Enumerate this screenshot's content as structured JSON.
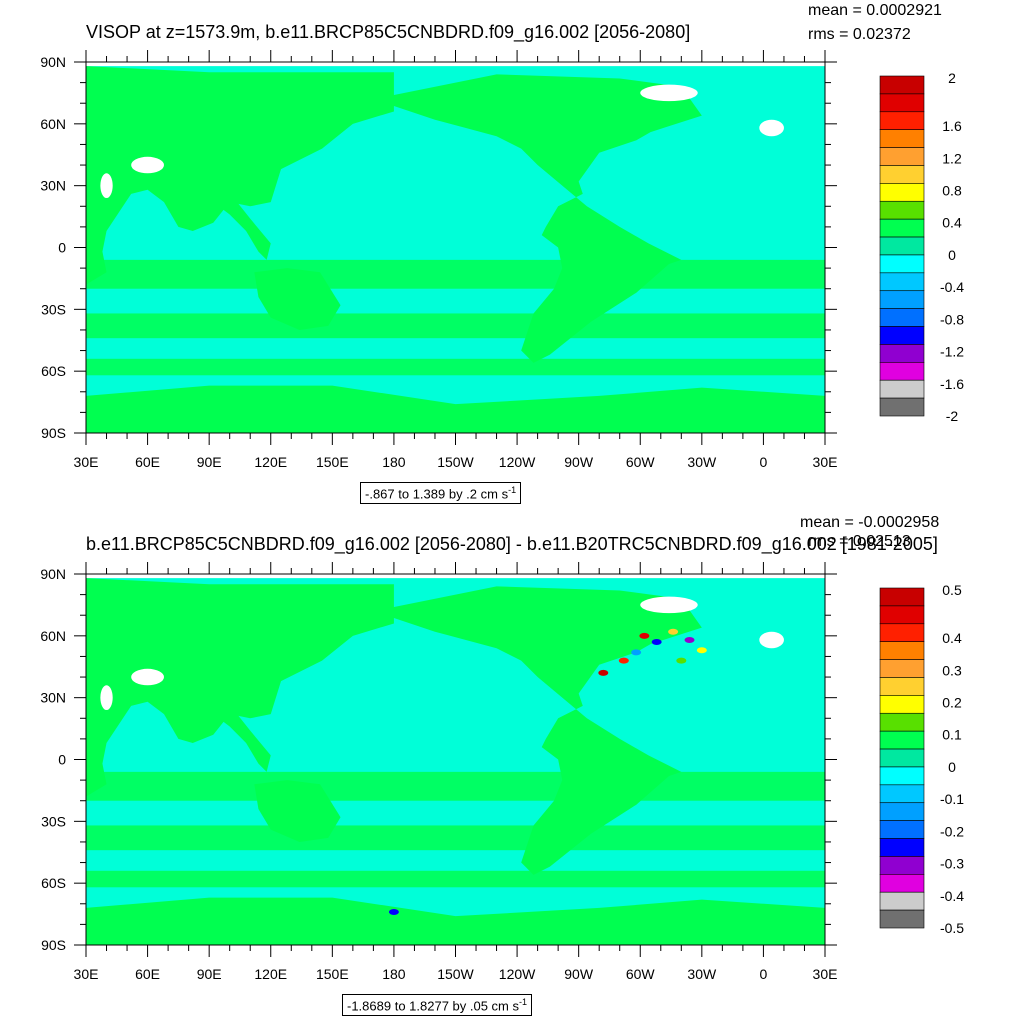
{
  "panels": [
    {
      "title": "VISOP at z=1573.9m, b.e11.BRCP85C5CNBDRD.f09_g16.002 [2056-2080]",
      "mean_label": "mean = 0.0002921",
      "rms_label": "rms = 0.02372",
      "range_text": "-.867 to 1.389 by .2 cm s",
      "range_unit_sup": "-1",
      "colorbar_labels": [
        "2",
        "1.6",
        "1.2",
        "0.8",
        "0.4",
        "0",
        "-0.4",
        "-0.8",
        "-1.2",
        "-1.6",
        "-2"
      ]
    },
    {
      "title": "b.e11.BRCP85C5CNBDRD.f09_g16.002 [2056-2080] - b.e11.B20TRC5CNBDRD.f09_g16.002 [1981-2005]",
      "mean_label": "mean = -0.0002958",
      "rms_label": "rms = 0.02513",
      "range_text": "-1.8689 to 1.8277 by .05 cm s",
      "range_unit_sup": "-1",
      "colorbar_labels": [
        "0.5",
        "0.4",
        "0.3",
        "0.2",
        "0.1",
        "0",
        "-0.1",
        "-0.2",
        "-0.3",
        "-0.4",
        "-0.5"
      ]
    }
  ],
  "axes": {
    "lat_labels": [
      "90N",
      "60N",
      "30N",
      "0",
      "30S",
      "60S",
      "90S"
    ],
    "lon_labels": [
      "30E",
      "60E",
      "90E",
      "120E",
      "150E",
      "180",
      "150W",
      "120W",
      "90W",
      "60W",
      "30W",
      "0",
      "30E"
    ]
  },
  "colors": {
    "scale": [
      "#c80000",
      "#e00000",
      "#ff2000",
      "#ff8000",
      "#ffa030",
      "#ffd030",
      "#ffff00",
      "#58e000",
      "#00ff50",
      "#00e8a0",
      "#00ffff",
      "#00c8ff",
      "#00a0ff",
      "#0070ff",
      "#0000ff",
      "#9000d0",
      "#e000e0",
      "#cccccc",
      "#707070"
    ],
    "land": "#00ff50",
    "ocean_neg": "#00ffd8"
  },
  "chart_data": [
    {
      "type": "heatmap",
      "title": "VISOP at z=1573.9m, b.e11.BRCP85C5CNBDRD.f09_g16.002 [2056-2080]",
      "variable": "VISOP",
      "units": "cm s-1",
      "min": -0.867,
      "max": 1.389,
      "interval": 0.2,
      "mean": 0.0002921,
      "rms": 0.02372,
      "colorbar_levels": [
        2,
        1.6,
        1.2,
        0.8,
        0.4,
        0,
        -0.4,
        -0.8,
        -1.2,
        -1.6,
        -2
      ],
      "lon_range": [
        "30E",
        "30E"
      ],
      "lat_range": [
        "90S",
        "90N"
      ]
    },
    {
      "type": "heatmap",
      "title": "b.e11.BRCP85C5CNBDRD.f09_g16.002 [2056-2080] - b.e11.B20TRC5CNBDRD.f09_g16.002 [1981-2005]",
      "units": "cm s-1",
      "min": -1.8689,
      "max": 1.8277,
      "interval": 0.05,
      "mean": -0.0002958,
      "rms": 0.02513,
      "colorbar_levels": [
        0.5,
        0.4,
        0.3,
        0.2,
        0.1,
        0,
        -0.1,
        -0.2,
        -0.3,
        -0.4,
        -0.5
      ],
      "lon_range": [
        "30E",
        "30E"
      ],
      "lat_range": [
        "90S",
        "90N"
      ]
    }
  ]
}
